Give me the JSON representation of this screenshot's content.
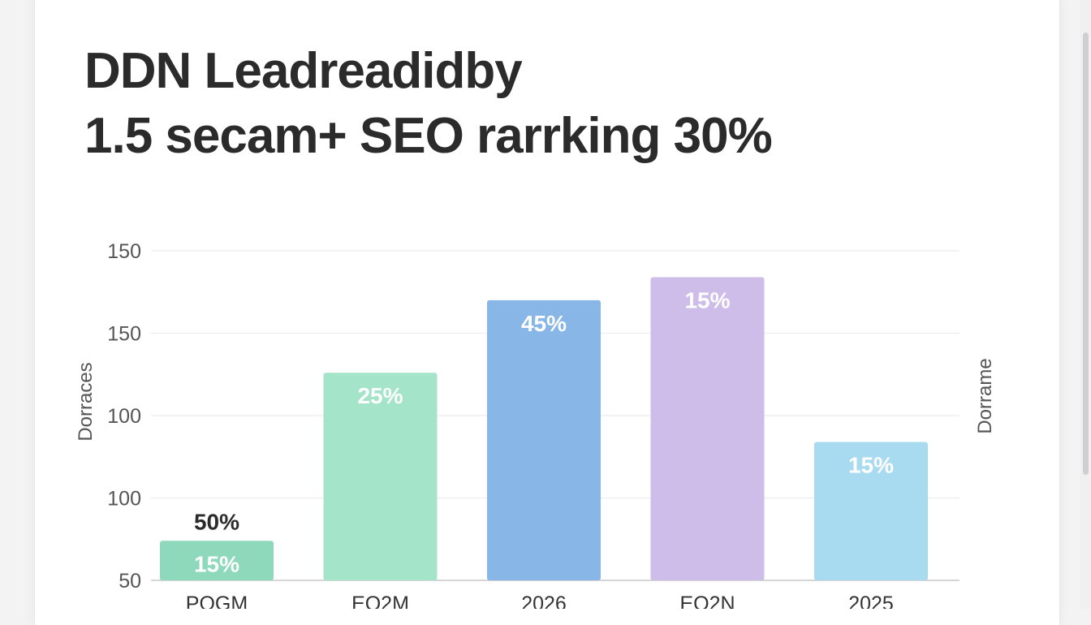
{
  "chart_data": {
    "type": "bar",
    "title_lines": [
      "DDN Leadreadidby",
      "1.5 secam+ SEO rarrking 30%"
    ],
    "ylabel": "Dorraces",
    "y2label": "Dorrame",
    "ytick_labels": [
      "150",
      "150",
      "100",
      "100",
      "50"
    ],
    "categories": [
      "POGM",
      "EQ2M",
      "2026",
      "EQ2N",
      "2025"
    ],
    "values": [
      62,
      113,
      135,
      142,
      92
    ],
    "ylim": [
      50,
      150
    ],
    "bar_labels": [
      "15%",
      "25%",
      "45%",
      "15%",
      "15%"
    ],
    "annotations": [
      {
        "category": "POGM",
        "text": "50%"
      }
    ],
    "colors": [
      "#8ed8bb",
      "#a4e4c9",
      "#88b6e6",
      "#cdbde8",
      "#a9dbf0"
    ],
    "grid": true,
    "legend": "none"
  }
}
